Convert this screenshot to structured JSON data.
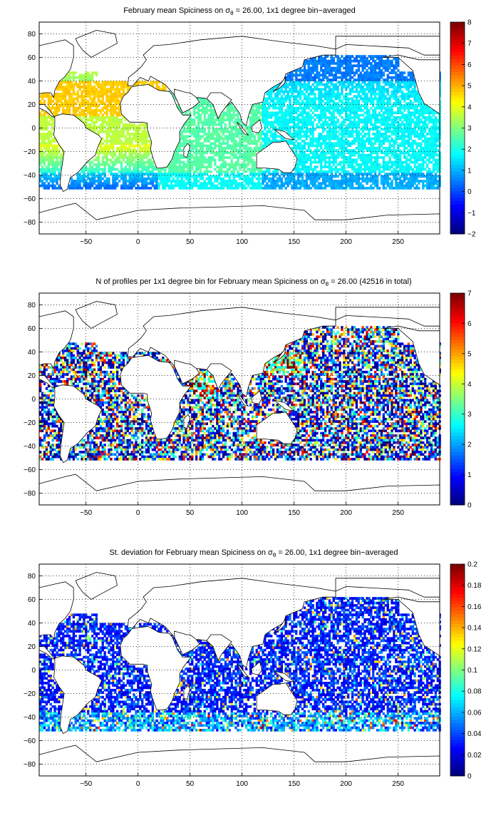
{
  "figure": {
    "background": "#ffffff",
    "land_color": "#ffffff",
    "coast_color": "#000000",
    "grid_color": "#000000"
  },
  "chart_data": [
    {
      "type": "heatmap",
      "title_pre": "February mean Spiciness on ",
      "title_sym": "σ",
      "title_sub": "θ",
      "title_post": " = 26.00, 1x1 degree bin−averaged",
      "xlim": [
        -95,
        290
      ],
      "ylim": [
        -90,
        90
      ],
      "xticks": [
        -50,
        0,
        50,
        100,
        150,
        200,
        250
      ],
      "yticks": [
        -80,
        -60,
        -40,
        -20,
        0,
        20,
        40,
        60,
        80
      ],
      "xtick_labels": [
        "−50",
        "0",
        "50",
        "100",
        "150",
        "200",
        "250"
      ],
      "ytick_labels": [
        "−80",
        "−60",
        "−40",
        "−20",
        "0",
        "20",
        "40",
        "60",
        "80"
      ],
      "grid": true,
      "colormap": "jet",
      "clim": [
        -2,
        8
      ],
      "colorbar_ticks": [
        -2,
        -1,
        0,
        1,
        2,
        3,
        4,
        5,
        6,
        7,
        8
      ],
      "colorbar_labels": [
        "−2",
        "−1",
        "0",
        "1",
        "2",
        "3",
        "4",
        "5",
        "6",
        "7",
        "8"
      ],
      "field": "spice"
    },
    {
      "type": "heatmap",
      "title_pre": "N of profiles per 1x1 degree bin for February mean Spiciness on ",
      "title_sym": "σ",
      "title_sub": "θ",
      "title_post": " = 26.00 (42516 in total)",
      "total_profiles": 42516,
      "xlim": [
        -95,
        290
      ],
      "ylim": [
        -90,
        90
      ],
      "xticks": [
        -50,
        0,
        50,
        100,
        150,
        200,
        250
      ],
      "yticks": [
        -80,
        -60,
        -40,
        -20,
        0,
        20,
        40,
        60,
        80
      ],
      "xtick_labels": [
        "−50",
        "0",
        "50",
        "100",
        "150",
        "200",
        "250"
      ],
      "ytick_labels": [
        "−80",
        "−60",
        "−40",
        "−20",
        "0",
        "20",
        "40",
        "60",
        "80"
      ],
      "grid": true,
      "colormap": "jet",
      "clim": [
        0,
        7
      ],
      "colorbar_ticks": [
        0,
        1,
        2,
        3,
        4,
        5,
        6,
        7
      ],
      "colorbar_labels": [
        "0",
        "1",
        "2",
        "3",
        "4",
        "5",
        "6",
        "7"
      ],
      "field": "count"
    },
    {
      "type": "heatmap",
      "title_pre": "St. deviation for February mean Spiciness on ",
      "title_sym": "σ",
      "title_sub": "θ",
      "title_post": " = 26.00, 1x1 degree bin−averaged",
      "xlim": [
        -95,
        290
      ],
      "ylim": [
        -90,
        90
      ],
      "xticks": [
        -50,
        0,
        50,
        100,
        150,
        200,
        250
      ],
      "yticks": [
        -80,
        -60,
        -40,
        -20,
        0,
        20,
        40,
        60,
        80
      ],
      "xtick_labels": [
        "−50",
        "0",
        "50",
        "100",
        "150",
        "200",
        "250"
      ],
      "ytick_labels": [
        "−80",
        "−60",
        "−40",
        "−20",
        "0",
        "20",
        "40",
        "60",
        "80"
      ],
      "grid": true,
      "colormap": "jet",
      "clim": [
        0,
        0.2
      ],
      "colorbar_ticks": [
        0,
        0.02,
        0.04,
        0.06,
        0.08,
        0.1,
        0.12,
        0.14,
        0.16,
        0.18,
        0.2
      ],
      "colorbar_labels": [
        "0",
        "0.02",
        "0.04",
        "0.06",
        "0.08",
        "0.1",
        "0.12",
        "0.14",
        "0.16",
        "0.18",
        "0.2"
      ],
      "field": "std"
    }
  ]
}
